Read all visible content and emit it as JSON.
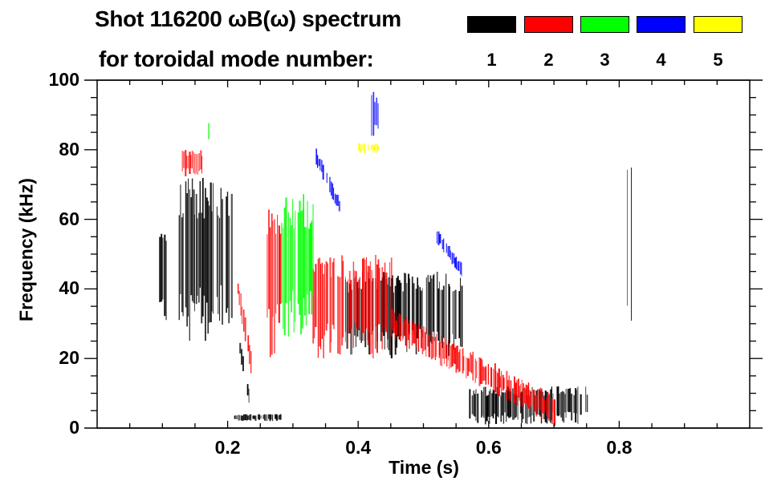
{
  "chart_data": {
    "type": "heatmap",
    "title": "Shot 116200 ωB(ω) spectrum",
    "subtitle": "for toroidal mode number:",
    "xlabel": "Time (s)",
    "ylabel": "Frequency (kHz)",
    "xlim": [
      0,
      1.0
    ],
    "ylim": [
      0,
      100
    ],
    "x_ticks": [
      0.2,
      0.4,
      0.6,
      0.8
    ],
    "x_tick_labels": [
      "0.2",
      "0.4",
      "0.6",
      "0.8"
    ],
    "x_minor_step": 0.05,
    "y_ticks": [
      0,
      20,
      40,
      60,
      80,
      100
    ],
    "y_tick_labels": [
      "0",
      "20",
      "40",
      "60",
      "80",
      "100"
    ],
    "y_minor_step": 5,
    "legend": [
      {
        "label": "1",
        "color": "#000000"
      },
      {
        "label": "2",
        "color": "#ff0000"
      },
      {
        "label": "3",
        "color": "#00ff00"
      },
      {
        "label": "4",
        "color": "#0000ff"
      },
      {
        "label": "5",
        "color": "#ffff00"
      }
    ],
    "legend_placement": "top-right",
    "regions": [
      {
        "mode": 1,
        "t": [
          0.095,
          0.105
        ],
        "f": [
          30,
          57
        ],
        "desc": "early n=1 burst"
      },
      {
        "mode": 1,
        "t": [
          0.125,
          0.205
        ],
        "f": [
          25,
          72
        ],
        "desc": "n=1 dense band 0.12-0.2 s"
      },
      {
        "mode": 1,
        "t": [
          0.218,
          0.232
        ],
        "f": [
          9,
          23
        ],
        "desc": "n=1 chirp down"
      },
      {
        "mode": 1,
        "t": [
          0.21,
          0.28
        ],
        "f": [
          2,
          4
        ],
        "desc": "n=1 low-frequency"
      },
      {
        "mode": 1,
        "t": [
          0.38,
          0.56
        ],
        "f": [
          20,
          45
        ],
        "desc": "n=1 band 0.38-0.56 s"
      },
      {
        "mode": 1,
        "t": [
          0.57,
          0.75
        ],
        "f": [
          1,
          12
        ],
        "desc": "n=1 low branch"
      },
      {
        "mode": 1,
        "t": [
          0.812,
          0.818
        ],
        "f": [
          27,
          80
        ],
        "desc": "n=1 at 0.815 s"
      },
      {
        "mode": 2,
        "t": [
          0.13,
          0.16
        ],
        "f": [
          72,
          80
        ],
        "desc": "n=2 high"
      },
      {
        "mode": 2,
        "t": [
          0.215,
          0.235
        ],
        "f": [
          19,
          40
        ],
        "desc": "n=2 chirp"
      },
      {
        "mode": 2,
        "t": [
          0.26,
          0.28
        ],
        "f": [
          20,
          65
        ],
        "desc": "n=2 vertical streaks"
      },
      {
        "mode": 2,
        "t": [
          0.33,
          0.45
        ],
        "f": [
          20,
          50
        ],
        "desc": "n=2 band"
      },
      {
        "mode": 2,
        "t": [
          0.45,
          0.7
        ],
        "f": [
          5,
          30
        ],
        "desc": "n=2 chirp down"
      },
      {
        "mode": 3,
        "t": [
          0.17,
          0.175
        ],
        "f": [
          83,
          88
        ],
        "desc": "n=3 high"
      },
      {
        "mode": 3,
        "t": [
          0.28,
          0.33
        ],
        "f": [
          25,
          68
        ],
        "desc": "n=3 band"
      },
      {
        "mode": 4,
        "t": [
          0.335,
          0.37
        ],
        "f": [
          64,
          78
        ],
        "desc": "n=4 chirp"
      },
      {
        "mode": 4,
        "t": [
          0.42,
          0.43
        ],
        "f": [
          82,
          97
        ],
        "desc": "n=4 high"
      },
      {
        "mode": 4,
        "t": [
          0.52,
          0.56
        ],
        "f": [
          45,
          55
        ],
        "desc": "n=4 chirp"
      },
      {
        "mode": 5,
        "t": [
          0.4,
          0.43
        ],
        "f": [
          79,
          82
        ],
        "desc": "n=5 sparse"
      }
    ]
  }
}
